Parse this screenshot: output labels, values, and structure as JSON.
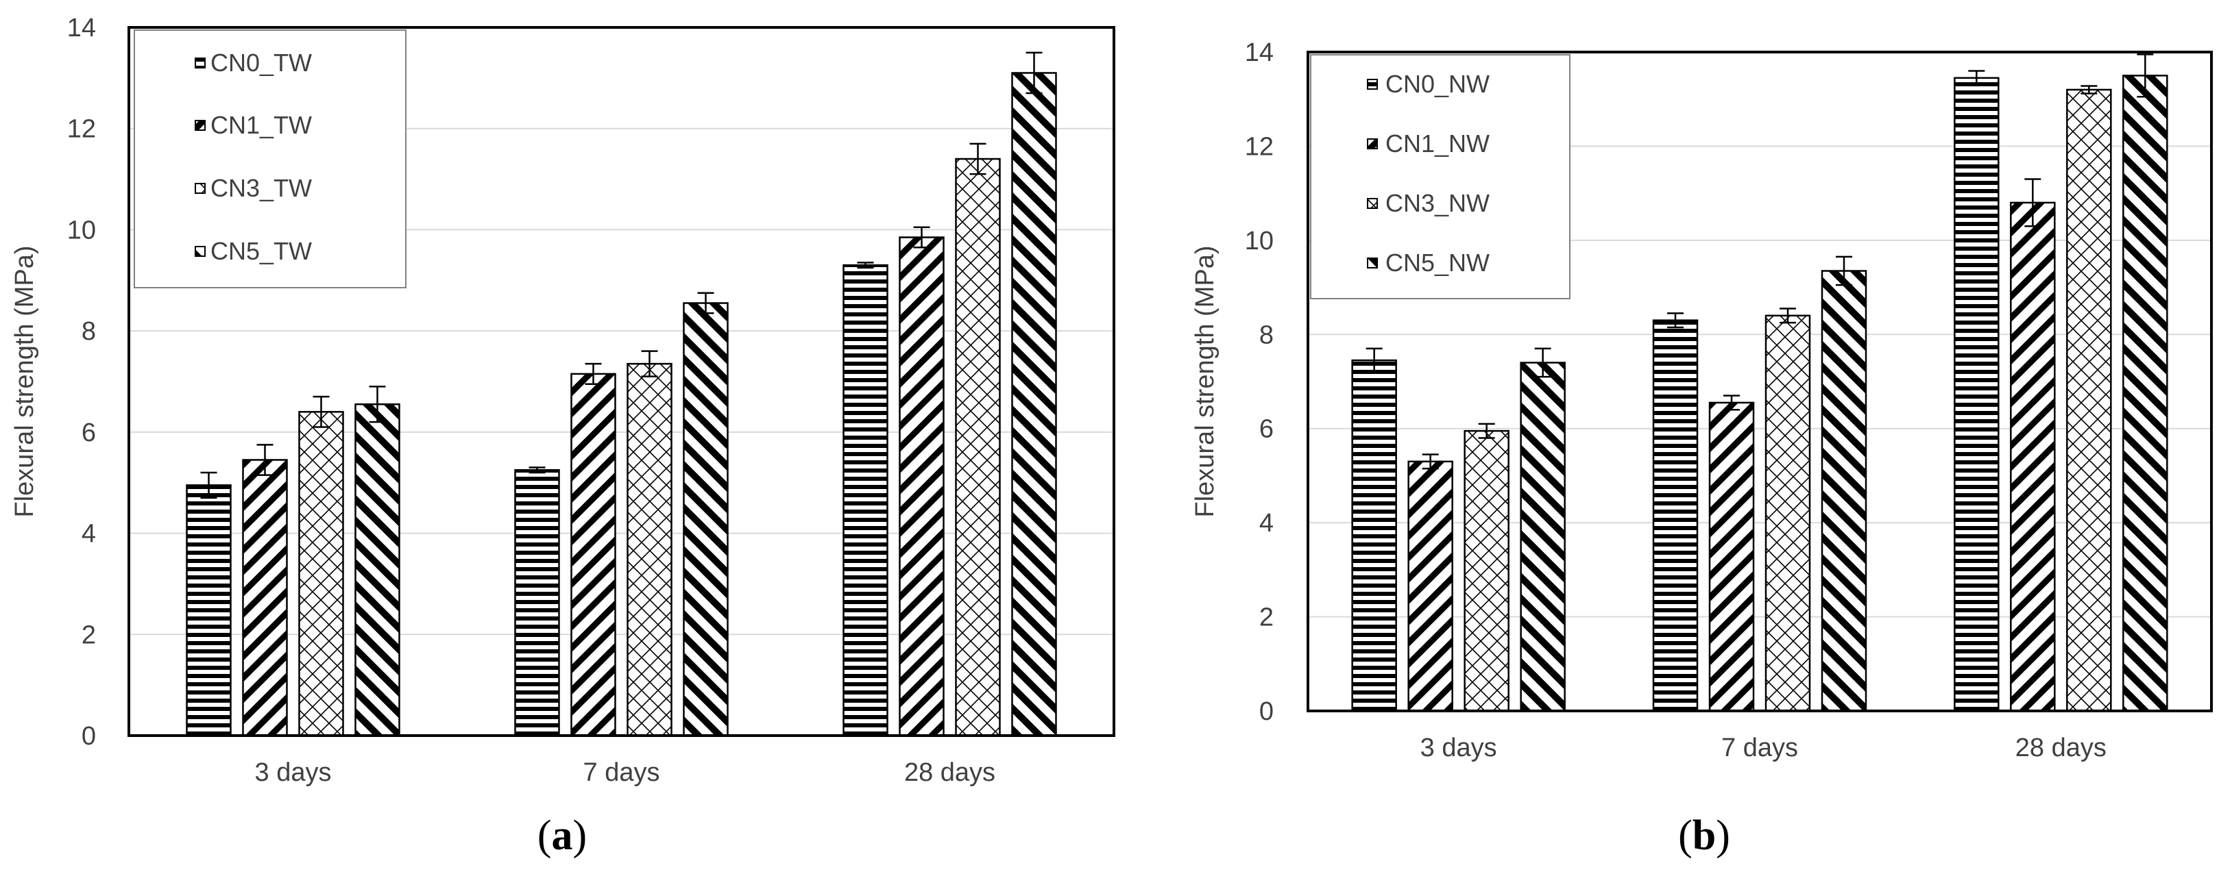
{
  "chart_data": [
    {
      "type": "bar",
      "caption": "(a)",
      "caption_letter": "a",
      "title": "",
      "xlabel": "",
      "ylabel": "Flexural strength (MPa)",
      "ylim": [
        0,
        14
      ],
      "yticks": [
        "0",
        "2",
        "4",
        "6",
        "8",
        "10",
        "12",
        "14"
      ],
      "grid": true,
      "legend_position": "top-left",
      "categories": [
        "3 days",
        "7 days",
        "28 days"
      ],
      "series": [
        {
          "name": "CN0_TW",
          "pattern": "horizontal",
          "values": [
            4.95,
            5.25,
            9.3
          ],
          "errors": [
            0.25,
            0.05,
            0.05
          ]
        },
        {
          "name": "CN1_TW",
          "pattern": "backslash",
          "values": [
            5.45,
            7.15,
            9.85
          ],
          "errors": [
            0.3,
            0.2,
            0.2
          ]
        },
        {
          "name": "CN3_TW",
          "pattern": "crosshatch",
          "values": [
            6.4,
            7.35,
            11.4
          ],
          "errors": [
            0.3,
            0.25,
            0.3
          ]
        },
        {
          "name": "CN5_TW",
          "pattern": "forward",
          "values": [
            6.55,
            8.55,
            13.1
          ],
          "errors": [
            0.35,
            0.2,
            0.4
          ]
        }
      ]
    },
    {
      "type": "bar",
      "caption": "(b)",
      "caption_letter": "b",
      "title": "",
      "xlabel": "",
      "ylabel": "Flexural strength (MPa)",
      "ylim": [
        0,
        14
      ],
      "yticks": [
        "0",
        "2",
        "4",
        "6",
        "8",
        "10",
        "12",
        "14"
      ],
      "grid": true,
      "legend_position": "top-left",
      "categories": [
        "3 days",
        "7 days",
        "28 days"
      ],
      "series": [
        {
          "name": "CN0_NW",
          "pattern": "horizontal",
          "values": [
            7.45,
            8.3,
            13.45
          ],
          "errors": [
            0.25,
            0.15,
            0.15
          ]
        },
        {
          "name": "CN1_NW",
          "pattern": "backslash",
          "values": [
            5.3,
            6.55,
            10.8
          ],
          "errors": [
            0.15,
            0.15,
            0.5
          ]
        },
        {
          "name": "CN3_NW",
          "pattern": "crosshatch",
          "values": [
            5.95,
            8.4,
            13.2
          ],
          "errors": [
            0.15,
            0.15,
            0.08
          ]
        },
        {
          "name": "CN5_NW",
          "pattern": "forward",
          "values": [
            7.4,
            9.35,
            13.5
          ],
          "errors": [
            0.3,
            0.3,
            0.45
          ]
        }
      ]
    }
  ]
}
